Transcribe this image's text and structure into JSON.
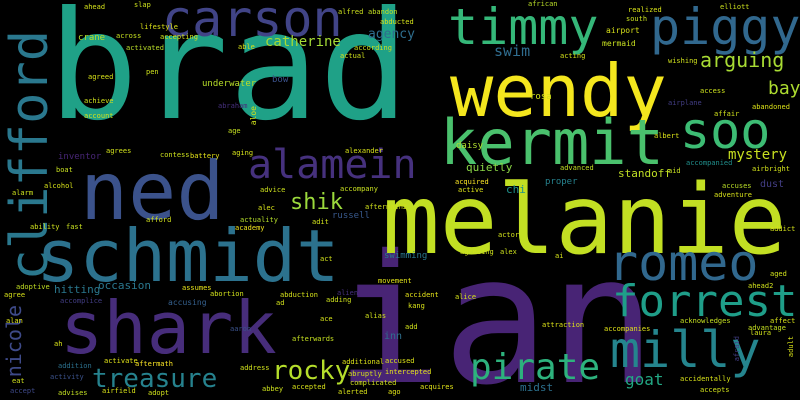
{
  "words": [
    {
      "text": "brad",
      "color": "#1fa187"
    },
    {
      "text": "ian",
      "color": "#482475"
    },
    {
      "text": "melanie",
      "color": "#c2df23"
    },
    {
      "text": "wendy",
      "color": "#f4e61e"
    },
    {
      "text": "schmidt",
      "color": "#2c728e"
    },
    {
      "text": "ned",
      "color": "#3b528b"
    },
    {
      "text": "shark",
      "color": "#472d7b"
    },
    {
      "text": "kermit",
      "color": "#4ac16d"
    },
    {
      "text": "timmy",
      "color": "#35b779"
    },
    {
      "text": "piggy",
      "color": "#31688e"
    },
    {
      "text": "carson",
      "color": "#414487"
    },
    {
      "text": "clifford",
      "color": "#2a788e"
    },
    {
      "text": "soo",
      "color": "#3dbc74"
    },
    {
      "text": "romeo",
      "color": "#31688e"
    },
    {
      "text": "forrest",
      "color": "#1f9e89"
    },
    {
      "text": "milly",
      "color": "#25858e"
    },
    {
      "text": "alamein",
      "color": "#46317e"
    },
    {
      "text": "pirate",
      "color": "#2db27d"
    },
    {
      "text": "treasure",
      "color": "#26828e"
    },
    {
      "text": "rocky",
      "color": "#b5de2b"
    },
    {
      "text": "nicole",
      "color": "#3e4a89"
    },
    {
      "text": "shik",
      "color": "#9bd93c"
    },
    {
      "text": "arguing",
      "color": "#a8db34"
    },
    {
      "text": "bay",
      "color": "#addc30"
    },
    {
      "text": "mystery",
      "color": "#c8e020"
    },
    {
      "text": "goat",
      "color": "#22a884"
    },
    {
      "text": "catherine",
      "color": "#a5db36"
    },
    {
      "text": "agency",
      "color": "#2e6e8e"
    },
    {
      "text": "swim",
      "color": "#2f6c8e"
    },
    {
      "text": "quietly",
      "color": "#8bd646"
    },
    {
      "text": "standoff",
      "color": "#c0df25"
    },
    {
      "text": "occasion",
      "color": "#2a778e"
    },
    {
      "text": "hitting",
      "color": "#2a788e"
    },
    {
      "text": "daisy",
      "color": "#b0dd2f"
    },
    {
      "text": "chi",
      "color": "#20928c"
    },
    {
      "text": "swimming",
      "color": "#2a788e"
    },
    {
      "text": "proper",
      "color": "#26828e"
    },
    {
      "text": "accusing",
      "color": "#35608d"
    },
    {
      "text": "midst",
      "color": "#2c718e"
    },
    {
      "text": "inventor",
      "color": "#482677"
    },
    {
      "text": "dust",
      "color": "#433e85"
    },
    {
      "text": "russell",
      "color": "#38598c"
    },
    {
      "text": "rosa",
      "color": "#d0e11c"
    },
    {
      "text": "underwater",
      "color": "#b8de29"
    },
    {
      "text": "crane",
      "color": "#b8de29"
    },
    {
      "text": "bow",
      "color": "#3b528b"
    },
    {
      "text": "airport",
      "color": "#d8e219"
    },
    {
      "text": "mermaid",
      "color": "#c8e020"
    },
    {
      "text": "abduction",
      "color": "#d5e21a"
    },
    {
      "text": "alien",
      "color": "#46307e"
    },
    {
      "text": "accident",
      "color": "#e5e419"
    },
    {
      "text": "alice",
      "color": "#d5e21a"
    },
    {
      "text": "aaron",
      "color": "#3b528b"
    },
    {
      "text": "accompanies",
      "color": "#e2e418"
    },
    {
      "text": "acknowledges",
      "color": "#c5e021"
    },
    {
      "text": "accept",
      "color": "#3e4989"
    },
    {
      "text": "adoptive",
      "color": "#c2df23"
    },
    {
      "text": "agree",
      "color": "#d8e219"
    },
    {
      "text": "abortion",
      "color": "#d2e21b"
    },
    {
      "text": "assumes",
      "color": "#e7e419"
    },
    {
      "text": "accompany",
      "color": "#c8e020"
    },
    {
      "text": "advice",
      "color": "#cde11d"
    },
    {
      "text": "actuality",
      "color": "#b5de2b"
    },
    {
      "text": "academy",
      "color": "#f1e51d"
    },
    {
      "text": "alexander",
      "color": "#d8e219"
    },
    {
      "text": "acquired",
      "color": "#fde725"
    },
    {
      "text": "active",
      "color": "#dde318"
    },
    {
      "text": "advanced",
      "color": "#c2df23"
    },
    {
      "text": "accompanied",
      "color": "#21908d"
    },
    {
      "text": "accuses",
      "color": "#bade28"
    },
    {
      "text": "adventure",
      "color": "#d8e219"
    },
    {
      "text": "acquires",
      "color": "#e2e418"
    },
    {
      "text": "accused",
      "color": "#dde318"
    },
    {
      "text": "aftermath",
      "color": "#fde725"
    },
    {
      "text": "abruptly",
      "color": "#d5e21a"
    },
    {
      "text": "intercepted",
      "color": "#e5e419"
    },
    {
      "text": "afterwards",
      "color": "#c5e021"
    },
    {
      "text": "additional",
      "color": "#dde318"
    },
    {
      "text": "address",
      "color": "#d0e11c"
    },
    {
      "text": "activate",
      "color": "#e2e418"
    },
    {
      "text": "accomplice",
      "color": "#433e85"
    },
    {
      "text": "attraction",
      "color": "#dde318"
    },
    {
      "text": "accidentally",
      "color": "#d8e219"
    },
    {
      "text": "aged",
      "color": "#d0e11c"
    },
    {
      "text": "addict",
      "color": "#d5e21a"
    },
    {
      "text": "advantage",
      "color": "#c5e021"
    },
    {
      "text": "acting",
      "color": "#d5e21a"
    },
    {
      "text": "according",
      "color": "#c8e020"
    },
    {
      "text": "actual",
      "color": "#d0e11c"
    },
    {
      "text": "achieve",
      "color": "#d0e11c"
    },
    {
      "text": "account",
      "color": "#d2e21b"
    },
    {
      "text": "agreed",
      "color": "#d8e219"
    },
    {
      "text": "activated",
      "color": "#bade28"
    },
    {
      "text": "accepting",
      "color": "#d2e21b"
    },
    {
      "text": "lifestyle",
      "color": "#dde318"
    },
    {
      "text": "across",
      "color": "#c5e021"
    },
    {
      "text": "ahead",
      "color": "#d5e21a"
    },
    {
      "text": "slap",
      "color": "#cde11d"
    },
    {
      "text": "alfred",
      "color": "#cde11d"
    },
    {
      "text": "abandon",
      "color": "#c2df23"
    },
    {
      "text": "abducted",
      "color": "#d5e21a"
    },
    {
      "text": "african",
      "color": "#bade28"
    },
    {
      "text": "elliott",
      "color": "#cde11d"
    },
    {
      "text": "abraham",
      "color": "#46307e"
    },
    {
      "text": "abandoned",
      "color": "#dde318"
    },
    {
      "text": "affair",
      "color": "#d0e11c"
    },
    {
      "text": "airplane",
      "color": "#433e85"
    },
    {
      "text": "access",
      "color": "#cde11d"
    },
    {
      "text": "albert",
      "color": "#dde318"
    },
    {
      "text": "aid",
      "color": "#c8e020"
    },
    {
      "text": "airbright",
      "color": "#d2e21b"
    },
    {
      "text": "wishing",
      "color": "#d0e11c"
    },
    {
      "text": "boat",
      "color": "#c8e020"
    },
    {
      "text": "alcohol",
      "color": "#d8e219"
    },
    {
      "text": "ability",
      "color": "#d0e11c"
    },
    {
      "text": "fast",
      "color": "#c8e020"
    },
    {
      "text": "afford",
      "color": "#d2e21b"
    },
    {
      "text": "agrees",
      "color": "#d2e21b"
    },
    {
      "text": "contess",
      "color": "#cde11d"
    },
    {
      "text": "battery",
      "color": "#e5e419"
    },
    {
      "text": "aging",
      "color": "#d5e21a"
    },
    {
      "text": "adopt",
      "color": "#d0e11c"
    },
    {
      "text": "airfield",
      "color": "#d8e219"
    },
    {
      "text": "advises",
      "color": "#c2df23"
    },
    {
      "text": "activity",
      "color": "#3b528b"
    },
    {
      "text": "addition",
      "color": "#2c718e"
    },
    {
      "text": "eat",
      "color": "#d0e11c"
    },
    {
      "text": "alarm",
      "color": "#cde11d"
    },
    {
      "text": "alan",
      "color": "#dde318"
    },
    {
      "text": "ah",
      "color": "#d8e219"
    },
    {
      "text": "ad",
      "color": "#d2e21b"
    },
    {
      "text": "adding",
      "color": "#cde11d"
    },
    {
      "text": "ace",
      "color": "#d5e21a"
    },
    {
      "text": "alias",
      "color": "#d0e11c"
    },
    {
      "text": "kang",
      "color": "#d8e219"
    },
    {
      "text": "inn",
      "color": "#2e6e8e"
    },
    {
      "text": "add",
      "color": "#d2e21b"
    },
    {
      "text": "alerted",
      "color": "#d8e219"
    },
    {
      "text": "ago",
      "color": "#e2e418"
    },
    {
      "text": "complicated",
      "color": "#d0e11c"
    },
    {
      "text": "accepted",
      "color": "#d8e219"
    },
    {
      "text": "abbey",
      "color": "#cde11d"
    },
    {
      "text": "aftermath2",
      "color": "#d0e11c"
    },
    {
      "text": "actor",
      "color": "#d2e21b"
    },
    {
      "text": "alec",
      "color": "#d8e219"
    },
    {
      "text": "adit",
      "color": "#d0e11c"
    },
    {
      "text": "act",
      "color": "#d2e21b"
    },
    {
      "text": "ai",
      "color": "#d5e21a"
    },
    {
      "text": "alex",
      "color": "#cde11d"
    },
    {
      "text": "agreeing",
      "color": "#d0e11c"
    },
    {
      "text": "movement",
      "color": "#e2e418"
    },
    {
      "text": "able",
      "color": "#d8e219"
    },
    {
      "text": "pen",
      "color": "#cde11d"
    },
    {
      "text": "age",
      "color": "#c5e021"
    },
    {
      "text": "aloe",
      "color": "#d0e11c"
    },
    {
      "text": "realized",
      "color": "#d8e219"
    },
    {
      "text": "south",
      "color": "#c8e020"
    },
    {
      "text": "admits",
      "color": "#d2e21b"
    },
    {
      "text": "ahead2",
      "color": "#d0e11c"
    },
    {
      "text": "laura",
      "color": "#d0e11c"
    },
    {
      "text": "affect",
      "color": "#d8e219"
    },
    {
      "text": "accepts",
      "color": "#d2e21b"
    },
    {
      "text": "adult",
      "color": "#d8e219"
    },
    {
      "text": "afraid",
      "color": "#433e85"
    },
    {
      "text": "aboard",
      "color": "#d2e21b"
    }
  ]
}
